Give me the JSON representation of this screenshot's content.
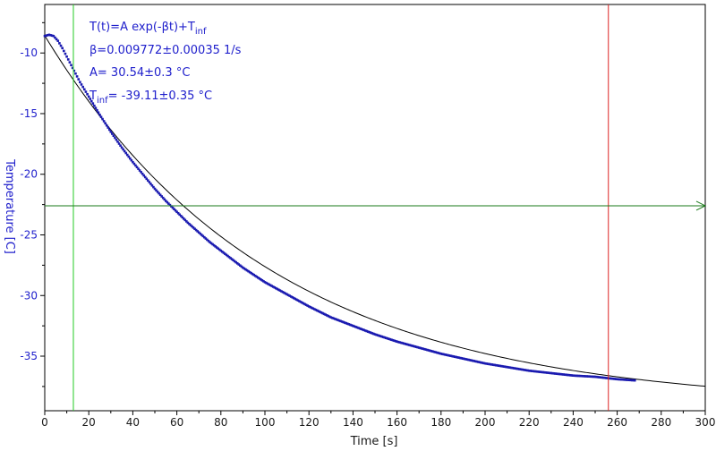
{
  "chart_data": {
    "type": "scatter",
    "xlabel": "Time [s]",
    "ylabel": "Temperature [C]",
    "xlim": [
      0,
      300
    ],
    "ylim": [
      -39.5,
      -6
    ],
    "x_ticks": [
      0,
      20,
      40,
      60,
      80,
      100,
      120,
      140,
      160,
      180,
      200,
      220,
      240,
      260,
      280,
      300
    ],
    "y_ticks": [
      -10,
      -15,
      -20,
      -25,
      -30,
      -35
    ],
    "annotations": {
      "formula_main": "T(t)=A exp(-βt)+T",
      "formula_sub": "inf",
      "beta": "β=0.009772±0.00035 1/s",
      "amplitude": "A= 30.54±0.3 °C",
      "tinf_label": "T",
      "tinf_sub": "inf",
      "tinf_value": "= -39.11±0.35 °C"
    },
    "fit": {
      "A": 30.54,
      "beta": 0.009772,
      "T_inf": -39.11,
      "x_range": [
        0,
        300
      ]
    },
    "series": [
      {
        "x": [
          0,
          2,
          4,
          6,
          8,
          10,
          12,
          14,
          16,
          18,
          20,
          25,
          30,
          35,
          40,
          45,
          50,
          55,
          60,
          65,
          70,
          75,
          80,
          85,
          90,
          95,
          100,
          110,
          120,
          130,
          140,
          150,
          160,
          170,
          180,
          190,
          200,
          210,
          220,
          230,
          240,
          250,
          260,
          268
        ],
        "y": [
          -8.6,
          -8.5,
          -8.6,
          -9.0,
          -9.6,
          -10.3,
          -11.0,
          -11.7,
          -12.4,
          -13.0,
          -13.6,
          -15.1,
          -16.5,
          -17.8,
          -19.0,
          -20.1,
          -21.2,
          -22.2,
          -23.1,
          -24.0,
          -24.8,
          -25.6,
          -26.3,
          -27.0,
          -27.7,
          -28.3,
          -28.9,
          -29.9,
          -30.9,
          -31.8,
          -32.5,
          -33.2,
          -33.8,
          -34.3,
          -34.8,
          -35.2,
          -35.6,
          -35.9,
          -36.2,
          -36.4,
          -36.6,
          -36.7,
          -36.9,
          -37.0
        ],
        "color": "#1a1ab0"
      }
    ],
    "vertical_lines": [
      {
        "x": 13,
        "color": "#22cc22"
      },
      {
        "x": 256,
        "color": "#dd2222"
      }
    ],
    "horizontal_cursor": {
      "y": -22.6,
      "color": "#1a7a1a"
    },
    "grid": false,
    "legend": "none"
  }
}
